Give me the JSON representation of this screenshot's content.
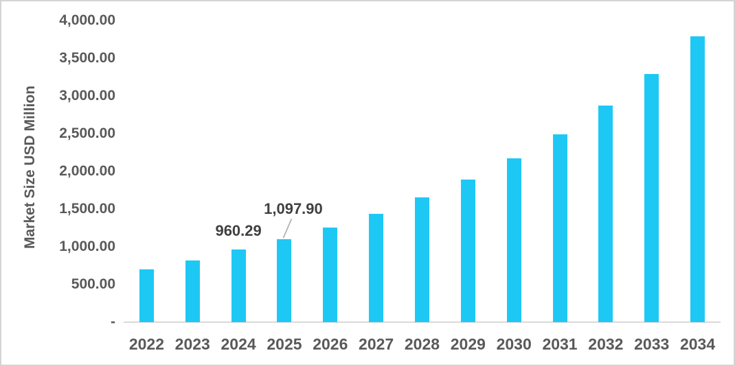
{
  "chart_data": {
    "type": "bar",
    "title": "",
    "xlabel": "",
    "ylabel": "Market Size USD Million",
    "categories": [
      "2022",
      "2023",
      "2024",
      "2025",
      "2026",
      "2027",
      "2028",
      "2029",
      "2030",
      "2031",
      "2032",
      "2033",
      "2034"
    ],
    "values": [
      700,
      815,
      960.29,
      1097.9,
      1255,
      1440,
      1650,
      1890,
      2175,
      2490,
      2870,
      3295,
      3795
    ],
    "ylim": [
      0,
      4000
    ],
    "y_ticks": [
      {
        "value": 4000,
        "label": "4,000.00"
      },
      {
        "value": 3500,
        "label": "3,500.00"
      },
      {
        "value": 3000,
        "label": "3,000.00"
      },
      {
        "value": 2500,
        "label": "2,500.00"
      },
      {
        "value": 2000,
        "label": "2,000.00"
      },
      {
        "value": 1500,
        "label": "1,500.00"
      },
      {
        "value": 1000,
        "label": "1,000.00"
      },
      {
        "value": 500,
        "label": "500.00"
      },
      {
        "value": 0,
        "label": "-"
      }
    ],
    "grid": false,
    "legend_position": "none",
    "data_labels": [
      {
        "category": "2024",
        "text": "960.29",
        "leader": false
      },
      {
        "category": "2025",
        "text": "1,097.90",
        "leader": true
      }
    ],
    "colors": {
      "bar": "#1ec8f5",
      "axis_text": "#595959",
      "data_label_text": "#404040",
      "axis_line": "#d9d9d9",
      "leader_line": "#a6a6a6",
      "canvas_border": "#d4d4d4"
    }
  }
}
